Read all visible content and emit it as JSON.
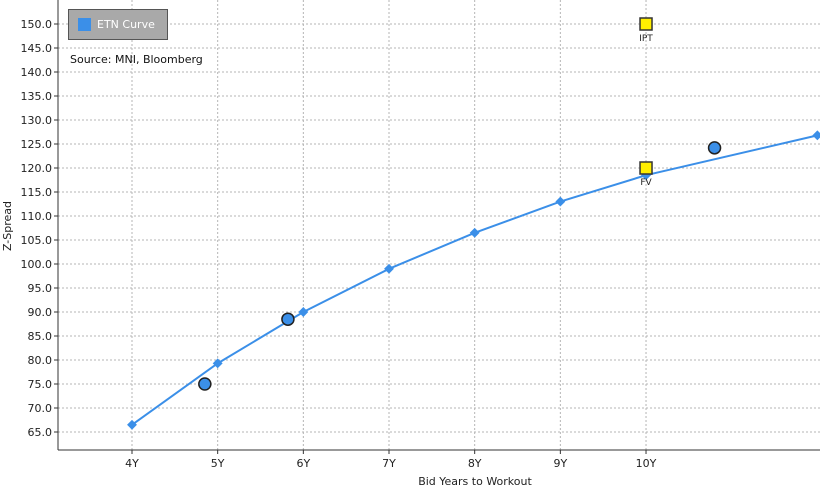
{
  "chart_data": {
    "type": "line",
    "xlabel": "Bid Years to Workout",
    "ylabel": "Z-Spread",
    "ylim": [
      62.5,
      152.5
    ],
    "xlim": [
      3,
      13
    ],
    "x_ticks": [
      {
        "value": 4,
        "label": "4Y"
      },
      {
        "value": 5,
        "label": "5Y"
      },
      {
        "value": 6,
        "label": "6Y"
      },
      {
        "value": 7,
        "label": "7Y"
      },
      {
        "value": 8,
        "label": "8Y"
      },
      {
        "value": 9,
        "label": "9Y"
      },
      {
        "value": 10,
        "label": "10Y"
      }
    ],
    "y_ticks": [
      65.0,
      70.0,
      75.0,
      80.0,
      85.0,
      90.0,
      95.0,
      100.0,
      105.0,
      110.0,
      115.0,
      120.0,
      125.0,
      130.0,
      135.0,
      140.0,
      145.0,
      150.0
    ],
    "grid": true,
    "legend_position": "top-left",
    "source_note": "Source: MNI, Bloomberg",
    "series": [
      {
        "name": "ETN Curve",
        "color": "#3b8fe8",
        "x": [
          4.0,
          5.0,
          6.0,
          7.0,
          8.0,
          9.0,
          10.0,
          12.0
        ],
        "y": [
          66.5,
          79.3,
          90.0,
          99.0,
          106.5,
          113.0,
          118.5,
          126.8
        ]
      }
    ],
    "bonds": {
      "color": "#3b8fe8",
      "x": [
        4.85,
        5.82,
        10.8
      ],
      "y": [
        75.0,
        88.5,
        124.2
      ]
    },
    "markers": [
      {
        "label": "IPT",
        "x": 10.0,
        "y": 150.0,
        "color": "#ffee00"
      },
      {
        "label": "FV",
        "x": 10.0,
        "y": 120.0,
        "color": "#ffee00"
      }
    ]
  }
}
